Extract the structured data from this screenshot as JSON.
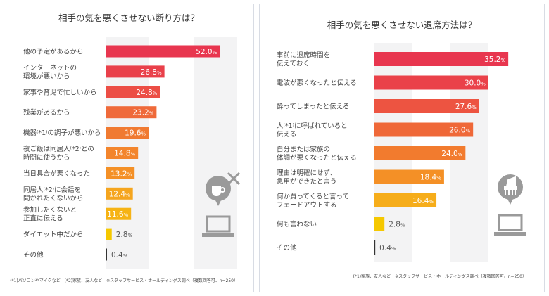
{
  "chart_data": [
    {
      "type": "bar",
      "orientation": "horizontal",
      "title": "相手の気を悪くさせない断り方は？",
      "categories": [
        "他の予定があるから",
        "インターネットの\n環境が悪いから",
        "家事や育児で忙しいから",
        "残業があるから",
        "機器(*1)の調子が悪いから",
        "夜ご飯は同居人(*2)との\n時間に使うから",
        "当日具合が悪くなった",
        "同居人(*2)に会話を\n聞かれたくないから",
        "参加したくないと\n正直に伝える",
        "ダイエット中だから",
        "その他"
      ],
      "values": [
        52.0,
        26.8,
        24.8,
        23.2,
        19.6,
        14.8,
        13.2,
        12.4,
        11.6,
        2.8,
        0.4
      ],
      "unit": "%",
      "colors": [
        "#e8364f",
        "#e9404a",
        "#ec4e45",
        "#ef6a3a",
        "#f07a31",
        "#f3852c",
        "#f49026",
        "#f5a51e",
        "#f6b315",
        "#f5c800",
        "#333333"
      ],
      "footnote": "(*1)パソコンやマイクなど　(*2)家族、友人など　※スタッフサービス・ホールディングス調べ（複数回答可、n=250）",
      "icons": [
        "speech-bubble-cup-icon",
        "cross-icon",
        "laptop-icon"
      ]
    },
    {
      "type": "bar",
      "orientation": "horizontal",
      "title": "相手の気を悪くさせない退席方法は？",
      "categories": [
        "事前に退席時間を\n伝えておく",
        "電波が悪くなったと伝える",
        "酔ってしまったと伝える",
        "人(*1)に呼ばれていると\n伝える",
        "自分または家族の\n体調が悪くなったと伝える",
        "理由は明確にせず、\n急用ができたと言う",
        "何か買ってくると言って\nフェードアウトする",
        "何も言わない",
        "その他"
      ],
      "values": [
        35.2,
        30.0,
        27.6,
        26.0,
        24.0,
        18.4,
        16.4,
        2.8,
        0.4
      ],
      "unit": "%",
      "colors": [
        "#e8364f",
        "#ea4149",
        "#ed5441",
        "#ef6838",
        "#f27b2e",
        "#f49026",
        "#f6ad1a",
        "#f5c800",
        "#333333"
      ],
      "footnote": "(*1)家族、友人など　※スタッフサービス・ホールディングス調べ（複数回答可、n=250）",
      "icons": [
        "speech-bubble-chair-icon",
        "laptop-icon"
      ]
    }
  ]
}
